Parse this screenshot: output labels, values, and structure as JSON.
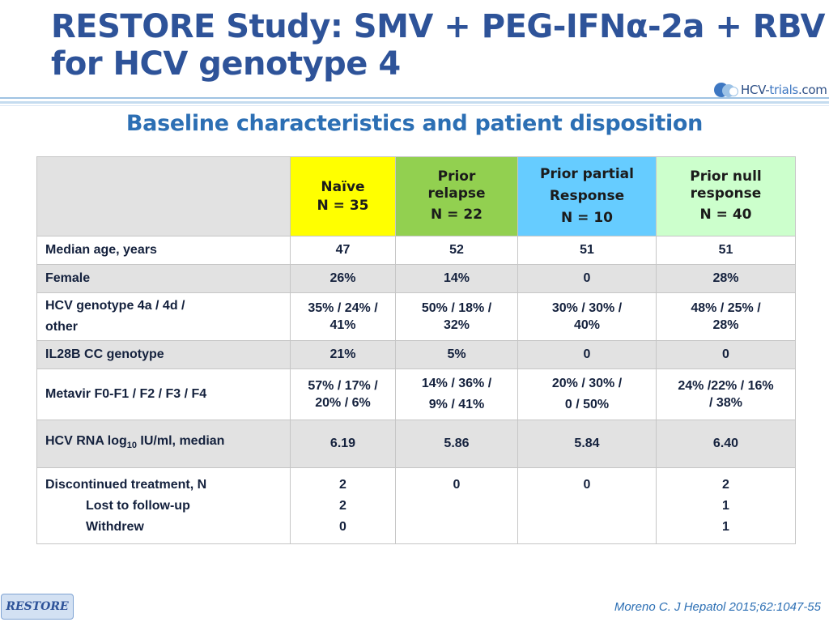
{
  "title": {
    "line1": "RESTORE Study: SMV + PEG-IFNα-2a + RBV",
    "line2": "for HCV genotype 4"
  },
  "logo": {
    "part1": "HCV-",
    "part2": "trials",
    "part3": ".com"
  },
  "subtitle": "Baseline characteristics and patient disposition",
  "columns": [
    {
      "line1": "Naïve",
      "line2": "N = 35",
      "color": "#ffff00"
    },
    {
      "line1": "Prior",
      "line2": "relapse",
      "line3": "N = 22",
      "color": "#92d050"
    },
    {
      "line1": "Prior partial",
      "line2": "Response",
      "line3": "N = 10",
      "color": "#66ccff"
    },
    {
      "line1": "Prior null",
      "line2": "response",
      "line3": "N = 40",
      "color": "#ccffcc"
    }
  ],
  "rows": {
    "age": {
      "label": "Median age, years",
      "values": [
        "47",
        "52",
        "51",
        "51"
      ]
    },
    "female": {
      "label": "Female",
      "values": [
        "26%",
        "14%",
        "0",
        "28%"
      ]
    },
    "genotype": {
      "label1": "HCV genotype 4a / 4d /",
      "label2": "other",
      "values": [
        [
          "35% / 24% /",
          "41%"
        ],
        [
          "50% / 18% /",
          "32%"
        ],
        [
          "30% / 30% /",
          "40%"
        ],
        [
          "48% / 25% /",
          "28%"
        ]
      ]
    },
    "il28b": {
      "label": "IL28B CC genotype",
      "values": [
        "21%",
        "5%",
        "0",
        "0"
      ]
    },
    "metavir": {
      "label": "Metavir F0-F1 / F2 / F3 / F4",
      "values": [
        [
          "57% / 17% /",
          "20% / 6%"
        ],
        [
          "14% / 36% /",
          "9% / 41%"
        ],
        [
          "20% / 30% /",
          "0 / 50%"
        ],
        [
          "24% /22% / 16%",
          "/ 38%"
        ]
      ]
    },
    "rna": {
      "label_prefix": "HCV RNA log",
      "label_sub": "10",
      "label_suffix": " IU/ml, median",
      "values": [
        "6.19",
        "5.86",
        "5.84",
        "6.40"
      ]
    },
    "discontinued": {
      "label1": "Discontinued treatment, N",
      "label2": "Lost to follow-up",
      "label3": "Withdrew",
      "values": [
        [
          "2",
          "2",
          "0"
        ],
        [
          "0"
        ],
        [
          "0"
        ],
        [
          "2",
          "1",
          "1"
        ]
      ]
    }
  },
  "footer": {
    "badge": "RESTORE",
    "reference": "Moreno C. J Hepatol 2015;62:1047-55"
  }
}
